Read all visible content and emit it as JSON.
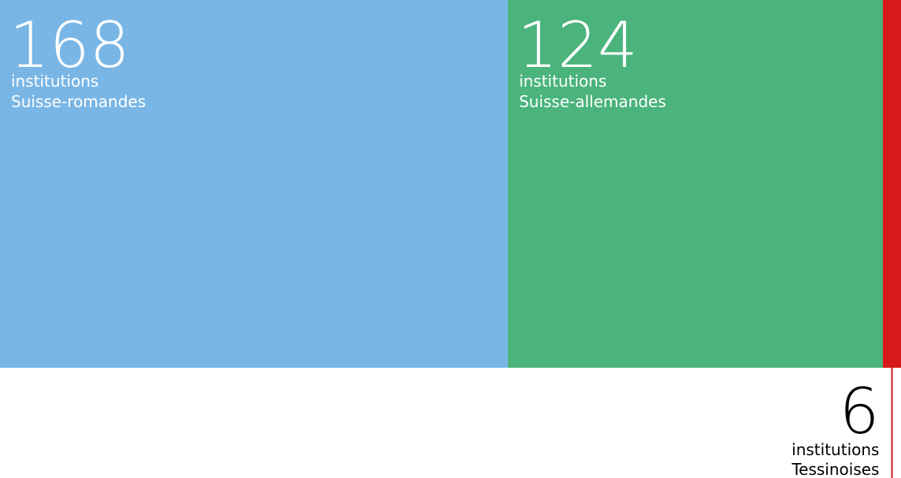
{
  "chart_data": {
    "type": "proportion-bar",
    "unit": "institutions",
    "categories": [
      "Suisse-romandes",
      "Suisse-allemandes",
      "Tessinoises"
    ],
    "values": [
      168,
      124,
      6
    ],
    "colors": [
      "#79b6e5",
      "#4ab47c",
      "#d7191c"
    ]
  }
}
